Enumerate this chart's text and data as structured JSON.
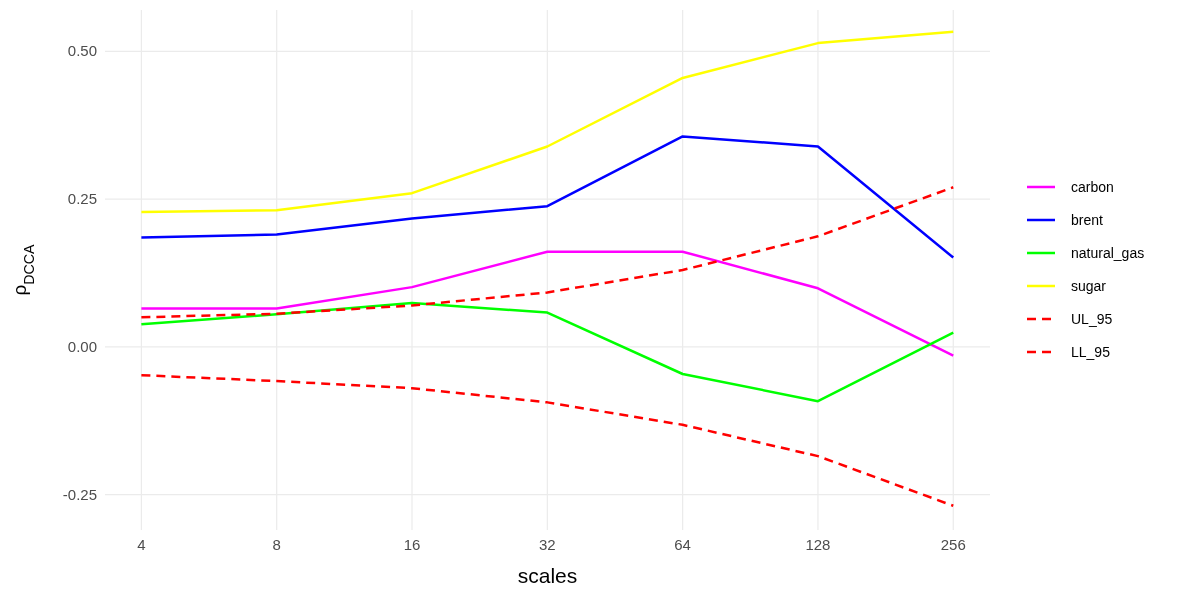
{
  "chart_data": {
    "type": "line",
    "xlabel": "scales",
    "ylabel": "ρ$_{DCCA}$",
    "log": "x",
    "x": [
      4,
      8,
      16,
      32,
      64,
      128,
      256
    ],
    "xlim": [
      3.32,
      309
    ],
    "xticks": [
      4,
      8,
      16,
      32,
      64,
      128,
      256
    ],
    "ylim": [
      -0.31,
      0.57
    ],
    "yticks": [
      {
        "value": -0.25,
        "label": "-0.25"
      },
      {
        "value": 0,
        "label": "0.00"
      },
      {
        "value": 0.25,
        "label": "0.25"
      },
      {
        "value": 0.5,
        "label": "0.50"
      }
    ],
    "grid": true,
    "legend": "right",
    "marker": "none",
    "series": [
      {
        "name": "carbon",
        "color": "#ff00ff",
        "values": [
          0.065,
          0.065,
          0.101,
          0.161,
          0.161,
          0.099,
          -0.015
        ]
      },
      {
        "name": "brent",
        "color": "#0000ff",
        "values": [
          0.185,
          0.19,
          0.217,
          0.238,
          0.356,
          0.339,
          0.151
        ]
      },
      {
        "name": "natural_gas",
        "color": "#00ff00",
        "values": [
          0.038,
          0.055,
          0.074,
          0.058,
          -0.046,
          -0.092,
          0.024
        ]
      },
      {
        "name": "sugar",
        "color": "#ffff00",
        "values": [
          0.228,
          0.231,
          0.26,
          0.339,
          0.455,
          0.514,
          0.533
        ]
      },
      {
        "name": "UL_95",
        "color": "#ff0000",
        "line_style": "dashed",
        "values": [
          0.05,
          0.056,
          0.07,
          0.092,
          0.13,
          0.187,
          0.27
        ]
      },
      {
        "name": "LL_95",
        "color": "#ff0000",
        "line_style": "dashed",
        "values": [
          -0.048,
          -0.058,
          -0.07,
          -0.094,
          -0.132,
          -0.185,
          -0.269
        ]
      }
    ]
  }
}
